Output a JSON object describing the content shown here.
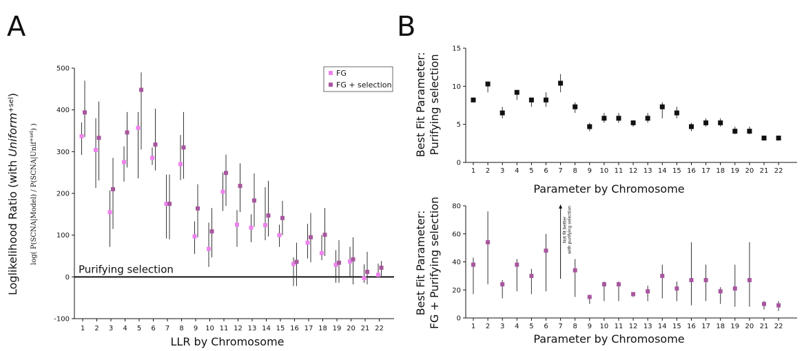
{
  "panel_letters": {
    "a": "A",
    "b": "B"
  },
  "chart_data": [
    {
      "id": "A",
      "type": "scatter",
      "xlabel": "LLR by Chromosome",
      "ylabel": "Loglikelihood Ratio (with Uniform+sel)",
      "ylabel_sub": "log(P(SCNA|Model) / P(SCNA|Unif+sel))",
      "ylim": [
        -100,
        500
      ],
      "yticks": [
        -100,
        0,
        100,
        200,
        300,
        400,
        500
      ],
      "categories": [
        "1",
        "2",
        "3",
        "4",
        "5",
        "6",
        "7",
        "8",
        "9",
        "10",
        "11",
        "12",
        "13",
        "14",
        "15",
        "16",
        "17",
        "18",
        "19",
        "20",
        "21",
        "22"
      ],
      "legend": {
        "position": "top-right"
      },
      "annotation": "Purifying selection",
      "reference_line": 0,
      "series": [
        {
          "name": "FG",
          "color": "#ee82ee",
          "values": [
            337,
            304,
            155,
            275,
            357,
            285,
            175,
            270,
            97,
            67,
            204,
            125,
            118,
            124,
            100,
            31,
            82,
            57,
            29,
            37,
            -3,
            5
          ],
          "err_low": [
            292,
            213,
            72,
            228,
            236,
            268,
            92,
            232,
            55,
            24,
            158,
            72,
            83,
            88,
            72,
            -22,
            44,
            40,
            -14,
            0,
            -14,
            -2
          ],
          "err_high": [
            370,
            380,
            207,
            313,
            395,
            310,
            245,
            340,
            133,
            130,
            250,
            160,
            150,
            215,
            125,
            47,
            127,
            100,
            64,
            72,
            30,
            32
          ]
        },
        {
          "name": "FG + selection",
          "color": "#a8569f",
          "values": [
            394,
            333,
            210,
            346,
            448,
            317,
            175,
            310,
            164,
            109,
            249,
            218,
            183,
            147,
            141,
            36,
            95,
            101,
            34,
            42,
            12,
            22
          ],
          "err_low": [
            335,
            231,
            115,
            262,
            305,
            255,
            90,
            235,
            95,
            47,
            170,
            155,
            120,
            97,
            100,
            -22,
            35,
            50,
            -14,
            -18,
            -18,
            2
          ],
          "err_high": [
            470,
            420,
            285,
            395,
            490,
            403,
            245,
            395,
            222,
            165,
            293,
            272,
            248,
            230,
            182,
            82,
            153,
            165,
            88,
            95,
            60,
            38
          ]
        }
      ]
    },
    {
      "id": "B-top",
      "type": "scatter",
      "xlabel": "Parameter by Chromosome",
      "ylabel": "Best Fit Parameter: Purifying selection",
      "ylim": [
        0,
        15
      ],
      "yticks": [
        0,
        5,
        10,
        15
      ],
      "categories": [
        "1",
        "2",
        "3",
        "4",
        "5",
        "6",
        "7",
        "8",
        "9",
        "10",
        "11",
        "12",
        "13",
        "14",
        "15",
        "16",
        "17",
        "18",
        "19",
        "20",
        "21",
        "22"
      ],
      "series": [
        {
          "name": "",
          "color": "#111111",
          "values": [
            8.2,
            10.3,
            6.5,
            9.2,
            8.2,
            8.2,
            10.4,
            7.3,
            4.7,
            5.8,
            5.8,
            5.2,
            5.8,
            7.3,
            6.5,
            4.7,
            5.2,
            5.2,
            4.1,
            4.1,
            3.2,
            3.2
          ],
          "err_low": [
            8.2,
            9.2,
            5.8,
            8.2,
            7.3,
            7.3,
            9.2,
            6.5,
            4.1,
            5.2,
            5.2,
            4.7,
            5.2,
            5.8,
            5.8,
            4.1,
            4.7,
            4.7,
            3.7,
            3.7,
            2.9,
            2.9
          ],
          "err_high": [
            8.2,
            10.6,
            7.3,
            9.5,
            8.2,
            9.2,
            11.6,
            7.9,
            5.2,
            6.5,
            6.5,
            5.5,
            6.5,
            7.9,
            7.3,
            5.2,
            5.8,
            5.8,
            4.7,
            4.7,
            3.4,
            3.4
          ]
        }
      ]
    },
    {
      "id": "B-bottom",
      "type": "scatter",
      "xlabel": "Parameter by Chromosome",
      "ylabel": "Best Fit Parameter: FG + Purifying selection",
      "ylim": [
        0,
        80
      ],
      "yticks": [
        0,
        20,
        40,
        60,
        80
      ],
      "categories": [
        "1",
        "2",
        "3",
        "4",
        "5",
        "6",
        "7",
        "8",
        "9",
        "10",
        "11",
        "12",
        "13",
        "14",
        "15",
        "16",
        "17",
        "18",
        "19",
        "20",
        "21",
        "22"
      ],
      "annotation": "Not fit better with purifying selection",
      "annotation_category": "7",
      "series": [
        {
          "name": "",
          "color": "#a8569f",
          "values": [
            38,
            54,
            24,
            38,
            30,
            48,
            null,
            34,
            15,
            24,
            24,
            17,
            19,
            30,
            21,
            27,
            27,
            19,
            21,
            27,
            10,
            9
          ],
          "err_low": [
            17,
            24,
            14,
            19,
            17,
            19,
            null,
            15,
            10,
            12,
            12,
            15,
            12,
            14,
            12,
            9,
            12,
            10,
            8,
            8,
            6,
            5
          ],
          "err_high": [
            43,
            76,
            27,
            42,
            35,
            60,
            null,
            42,
            16,
            26,
            26,
            18,
            23,
            38,
            26,
            54,
            38,
            22,
            38,
            54,
            12,
            12
          ]
        }
      ]
    }
  ]
}
